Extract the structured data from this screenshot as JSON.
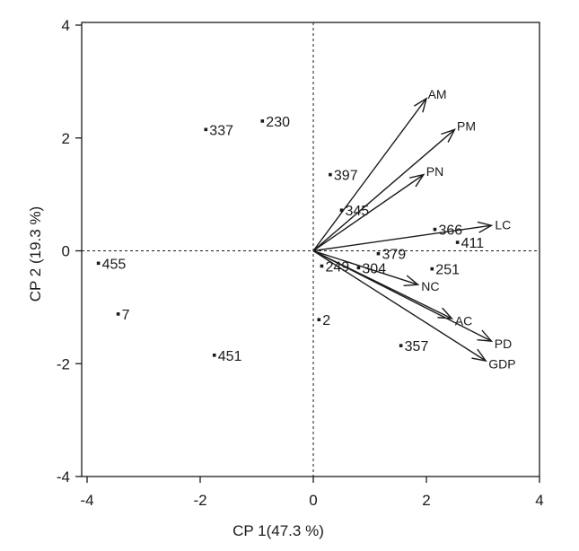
{
  "chart_data": {
    "type": "scatter",
    "subtype": "pca-biplot",
    "title": "",
    "xlabel": "CP 1(47.3 %)",
    "ylabel": "CP 2 (19.3 %)",
    "xlim": [
      -4,
      4
    ],
    "ylim": [
      -4,
      4
    ],
    "xticks": [
      -4,
      -2,
      0,
      2,
      4
    ],
    "yticks": [
      -4,
      -2,
      0,
      2,
      4
    ],
    "grid": false,
    "reference_lines": "dashed lines at x = 0 and y = 0",
    "points": [
      {
        "label": "230",
        "x": -0.9,
        "y": 2.3
      },
      {
        "label": "337",
        "x": -1.9,
        "y": 2.15
      },
      {
        "label": "397",
        "x": 0.3,
        "y": 1.35
      },
      {
        "label": "345",
        "x": 0.5,
        "y": 0.72
      },
      {
        "label": "366",
        "x": 2.15,
        "y": 0.38
      },
      {
        "label": "411",
        "x": 2.55,
        "y": 0.15
      },
      {
        "label": "379",
        "x": 1.15,
        "y": -0.05
      },
      {
        "label": "249",
        "x": 0.15,
        "y": -0.27
      },
      {
        "label": "304",
        "x": 0.8,
        "y": -0.3
      },
      {
        "label": "251",
        "x": 2.1,
        "y": -0.32
      },
      {
        "label": "455",
        "x": -3.8,
        "y": -0.22
      },
      {
        "label": "7",
        "x": -3.45,
        "y": -1.12
      },
      {
        "label": "2",
        "x": 0.1,
        "y": -1.22
      },
      {
        "label": "357",
        "x": 1.55,
        "y": -1.68
      },
      {
        "label": "451",
        "x": -1.75,
        "y": -1.85
      }
    ],
    "vectors": [
      {
        "label": "AM",
        "x": 2.0,
        "y": 2.7
      },
      {
        "label": "PM",
        "x": 2.5,
        "y": 2.15
      },
      {
        "label": "PN",
        "x": 1.95,
        "y": 1.35
      },
      {
        "label": "LC",
        "x": 3.15,
        "y": 0.45
      },
      {
        "label": "NC",
        "x": 1.85,
        "y": -0.6
      },
      {
        "label": "AC",
        "x": 2.45,
        "y": -1.2
      },
      {
        "label": "PD",
        "x": 3.15,
        "y": -1.6
      },
      {
        "label": "GDP",
        "x": 3.05,
        "y": -1.95
      }
    ]
  },
  "colors": {
    "ink": "#1a1a1a",
    "background": "#ffffff"
  }
}
